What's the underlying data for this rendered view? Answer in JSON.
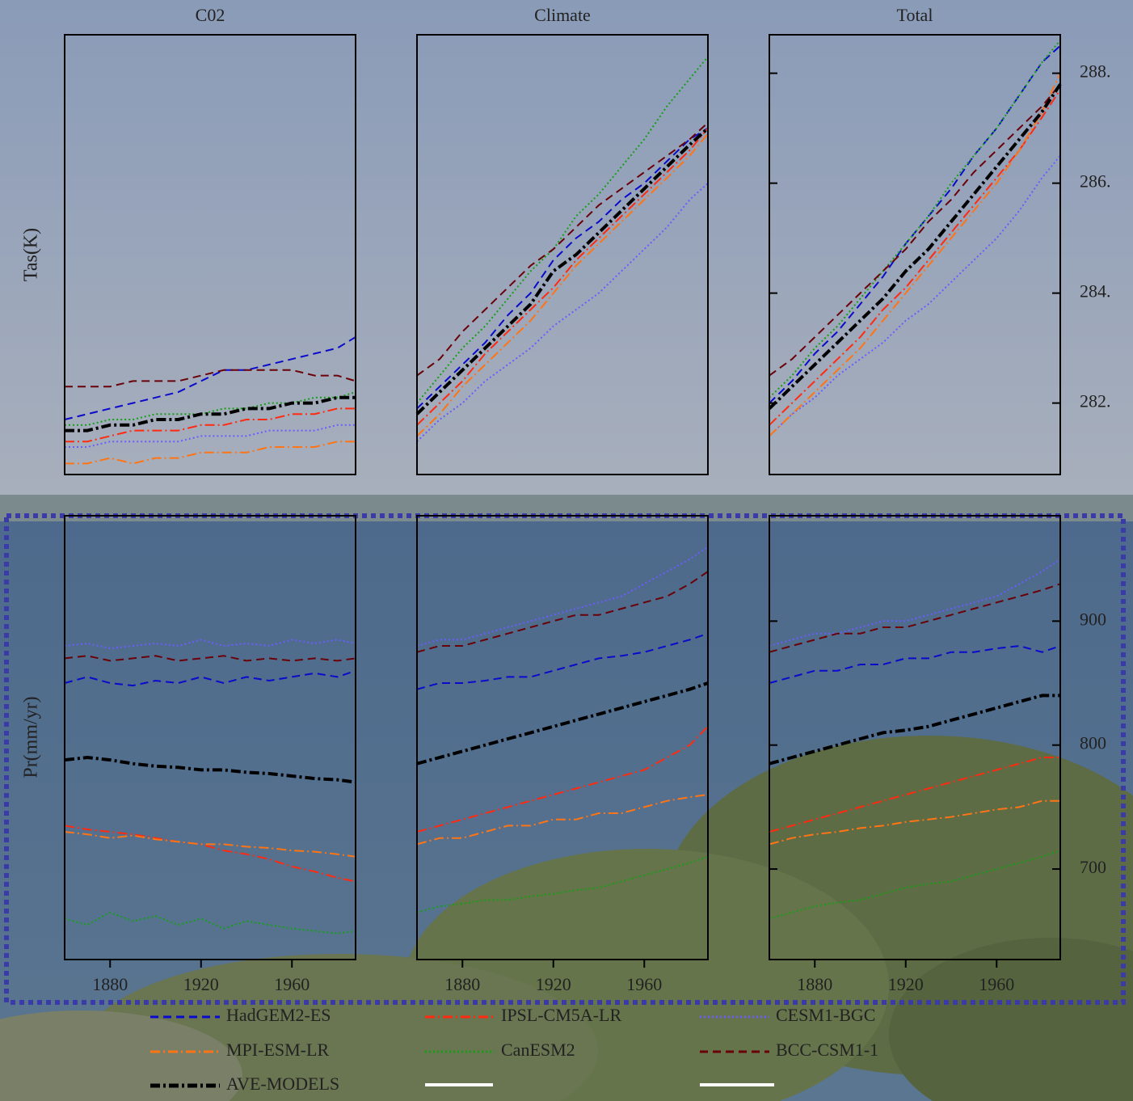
{
  "chart_data": [
    {
      "type": "line",
      "title": "C02",
      "ylabel": "Tas(K)",
      "xlim": [
        1860,
        1988
      ],
      "ylim": [
        280.7,
        288.7
      ],
      "x": [
        1860,
        1870,
        1880,
        1890,
        1900,
        1910,
        1920,
        1930,
        1940,
        1950,
        1960,
        1970,
        1980,
        1988
      ],
      "series": [
        {
          "name": "HadGEM2-ES",
          "color": "#0a0acc",
          "style": "dashed",
          "values": [
            281.7,
            281.8,
            281.9,
            282.0,
            282.1,
            282.2,
            282.4,
            282.6,
            282.6,
            282.7,
            282.8,
            282.9,
            283.0,
            283.2
          ]
        },
        {
          "name": "IPSL-CM5A-LR",
          "color": "#ff2a10",
          "style": "dashdot",
          "values": [
            281.3,
            281.3,
            281.4,
            281.5,
            281.5,
            281.5,
            281.6,
            281.6,
            281.7,
            281.7,
            281.8,
            281.8,
            281.9,
            281.9
          ]
        },
        {
          "name": "CESM1-BGC",
          "color": "#6a5cff",
          "style": "dotted",
          "values": [
            281.2,
            281.2,
            281.3,
            281.3,
            281.3,
            281.3,
            281.4,
            281.4,
            281.4,
            281.5,
            281.5,
            281.5,
            281.6,
            281.6
          ]
        },
        {
          "name": "MPI-ESM-LR",
          "color": "#ff7414",
          "style": "dashdot",
          "values": [
            280.9,
            280.9,
            281.0,
            280.9,
            281.0,
            281.0,
            281.1,
            281.1,
            281.1,
            281.2,
            281.2,
            281.2,
            281.3,
            281.3
          ]
        },
        {
          "name": "CanESM2",
          "color": "#14a014",
          "style": "dotted",
          "values": [
            281.6,
            281.6,
            281.7,
            281.7,
            281.8,
            281.8,
            281.8,
            281.9,
            281.9,
            282.0,
            282.0,
            282.1,
            282.1,
            282.2
          ]
        },
        {
          "name": "BCC-CSM1-1",
          "color": "#6a0008",
          "style": "dashed",
          "values": [
            282.3,
            282.3,
            282.3,
            282.4,
            282.4,
            282.4,
            282.5,
            282.6,
            282.6,
            282.6,
            282.6,
            282.5,
            282.5,
            282.4
          ]
        },
        {
          "name": "AVE-MODELS",
          "color": "#000000",
          "style": "thick",
          "values": [
            281.5,
            281.5,
            281.6,
            281.6,
            281.7,
            281.7,
            281.8,
            281.8,
            281.9,
            281.9,
            282.0,
            282.0,
            282.1,
            282.1
          ]
        }
      ]
    },
    {
      "type": "line",
      "title": "Climate",
      "xlim": [
        1860,
        1988
      ],
      "ylim": [
        280.7,
        288.7
      ],
      "x": [
        1860,
        1870,
        1880,
        1890,
        1900,
        1910,
        1920,
        1930,
        1940,
        1950,
        1960,
        1970,
        1980,
        1988
      ],
      "series": [
        {
          "name": "HadGEM2-ES",
          "color": "#0a0acc",
          "style": "dashed",
          "values": [
            281.9,
            282.3,
            282.7,
            283.1,
            283.6,
            284.0,
            284.6,
            285.0,
            285.3,
            285.7,
            286.0,
            286.4,
            286.8,
            287.0
          ]
        },
        {
          "name": "IPSL-CM5A-LR",
          "color": "#ff2a10",
          "style": "dashdot",
          "values": [
            281.6,
            282.0,
            282.4,
            282.9,
            283.3,
            283.7,
            284.1,
            284.6,
            285.0,
            285.4,
            285.8,
            286.2,
            286.6,
            287.0
          ]
        },
        {
          "name": "CESM1-BGC",
          "color": "#6a5cff",
          "style": "dotted",
          "values": [
            281.3,
            281.7,
            282.0,
            282.4,
            282.7,
            283.0,
            283.4,
            283.7,
            284.0,
            284.4,
            284.8,
            285.2,
            285.7,
            286.0
          ]
        },
        {
          "name": "MPI-ESM-LR",
          "color": "#ff7414",
          "style": "dashdot",
          "values": [
            281.4,
            281.8,
            282.3,
            282.7,
            283.1,
            283.5,
            284.0,
            284.5,
            284.9,
            285.3,
            285.7,
            286.1,
            286.5,
            286.9
          ]
        },
        {
          "name": "CanESM2",
          "color": "#14a014",
          "style": "dotted",
          "values": [
            282.0,
            282.5,
            283.0,
            283.4,
            283.9,
            284.4,
            284.8,
            285.4,
            285.8,
            286.3,
            286.8,
            287.4,
            287.9,
            288.3
          ]
        },
        {
          "name": "BCC-CSM1-1",
          "color": "#6a0008",
          "style": "dashed",
          "values": [
            282.5,
            282.8,
            283.3,
            283.7,
            284.1,
            284.5,
            284.8,
            285.2,
            285.6,
            285.9,
            286.2,
            286.5,
            286.8,
            287.1
          ]
        },
        {
          "name": "AVE-MODELS",
          "color": "#000000",
          "style": "thick",
          "values": [
            281.8,
            282.2,
            282.6,
            283.0,
            283.4,
            283.8,
            284.4,
            284.7,
            285.1,
            285.5,
            285.9,
            286.3,
            286.7,
            287.0
          ]
        }
      ]
    },
    {
      "type": "line",
      "title": "Total",
      "xlim": [
        1860,
        1988
      ],
      "ylim": [
        280.7,
        288.7
      ],
      "yticks": [
        {
          "value": 282,
          "label": "282."
        },
        {
          "value": 284,
          "label": "284."
        },
        {
          "value": 286,
          "label": "286."
        },
        {
          "value": 288,
          "label": "288."
        }
      ],
      "x": [
        1860,
        1870,
        1880,
        1890,
        1900,
        1910,
        1920,
        1930,
        1940,
        1950,
        1960,
        1970,
        1980,
        1988
      ],
      "series": [
        {
          "name": "HadGEM2-ES",
          "color": "#0a0acc",
          "style": "dashed",
          "values": [
            282.0,
            282.4,
            282.9,
            283.3,
            283.8,
            284.3,
            284.9,
            285.4,
            285.9,
            286.5,
            287.0,
            287.6,
            288.2,
            288.5
          ]
        },
        {
          "name": "IPSL-CM5A-LR",
          "color": "#ff2a10",
          "style": "dashdot",
          "values": [
            281.6,
            282.0,
            282.4,
            282.8,
            283.2,
            283.7,
            284.1,
            284.6,
            285.1,
            285.6,
            286.1,
            286.6,
            287.2,
            287.7
          ]
        },
        {
          "name": "CESM1-BGC",
          "color": "#6a5cff",
          "style": "dotted",
          "values": [
            281.4,
            281.8,
            282.1,
            282.5,
            282.8,
            283.1,
            283.5,
            283.8,
            284.2,
            284.6,
            285.0,
            285.5,
            286.1,
            286.5
          ]
        },
        {
          "name": "MPI-ESM-LR",
          "color": "#ff7414",
          "style": "dashdot",
          "values": [
            281.4,
            281.8,
            282.2,
            282.6,
            283.0,
            283.5,
            284.0,
            284.5,
            285.0,
            285.5,
            286.0,
            286.6,
            287.3,
            288.0
          ]
        },
        {
          "name": "CanESM2",
          "color": "#14a014",
          "style": "dotted",
          "values": [
            282.1,
            282.5,
            283.0,
            283.4,
            283.9,
            284.4,
            284.9,
            285.4,
            286.0,
            286.5,
            287.0,
            287.6,
            288.2,
            288.6
          ]
        },
        {
          "name": "BCC-CSM1-1",
          "color": "#6a0008",
          "style": "dashed",
          "values": [
            282.5,
            282.8,
            283.2,
            283.6,
            284.0,
            284.4,
            284.8,
            285.3,
            285.7,
            286.2,
            286.6,
            287.0,
            287.4,
            287.8
          ]
        },
        {
          "name": "AVE-MODELS",
          "color": "#000000",
          "style": "thick",
          "values": [
            281.9,
            282.3,
            282.7,
            283.1,
            283.5,
            283.9,
            284.4,
            284.8,
            285.3,
            285.8,
            286.3,
            286.8,
            287.3,
            287.8
          ]
        }
      ]
    },
    {
      "type": "line",
      "ylabel": "Pr(mm/yr)",
      "xlim": [
        1860,
        1988
      ],
      "ylim": [
        627,
        985
      ],
      "xticks": [
        1880,
        1920,
        1960
      ],
      "x": [
        1860,
        1870,
        1880,
        1890,
        1900,
        1910,
        1920,
        1930,
        1940,
        1950,
        1960,
        1970,
        1980,
        1988
      ],
      "series": [
        {
          "name": "HadGEM2-ES",
          "color": "#0a0acc",
          "style": "dashed",
          "values": [
            850,
            855,
            850,
            848,
            852,
            850,
            855,
            850,
            855,
            852,
            855,
            858,
            855,
            860
          ]
        },
        {
          "name": "IPSL-CM5A-LR",
          "color": "#ff2a10",
          "style": "dashdot",
          "values": [
            735,
            732,
            730,
            728,
            725,
            722,
            720,
            715,
            712,
            708,
            702,
            698,
            693,
            690
          ]
        },
        {
          "name": "CESM1-BGC",
          "color": "#6a5cff",
          "style": "dotted",
          "values": [
            880,
            882,
            878,
            880,
            882,
            880,
            885,
            880,
            882,
            880,
            885,
            882,
            885,
            882
          ]
        },
        {
          "name": "MPI-ESM-LR",
          "color": "#ff7414",
          "style": "dashdot",
          "values": [
            730,
            728,
            725,
            727,
            724,
            722,
            720,
            720,
            718,
            717,
            715,
            714,
            712,
            710
          ]
        },
        {
          "name": "CanESM2",
          "color": "#14a014",
          "style": "dotted",
          "values": [
            660,
            655,
            665,
            658,
            662,
            655,
            660,
            652,
            658,
            655,
            652,
            650,
            648,
            650
          ]
        },
        {
          "name": "BCC-CSM1-1",
          "color": "#6a0008",
          "style": "dashed",
          "values": [
            870,
            872,
            868,
            870,
            872,
            868,
            870,
            872,
            868,
            870,
            868,
            870,
            868,
            870
          ]
        },
        {
          "name": "AVE-MODELS",
          "color": "#000000",
          "style": "thick",
          "values": [
            788,
            790,
            788,
            785,
            783,
            782,
            780,
            780,
            778,
            777,
            775,
            773,
            772,
            770
          ]
        }
      ]
    },
    {
      "type": "line",
      "xlim": [
        1860,
        1988
      ],
      "ylim": [
        627,
        985
      ],
      "xticks": [
        1880,
        1920,
        1960
      ],
      "x": [
        1860,
        1870,
        1880,
        1890,
        1900,
        1910,
        1920,
        1930,
        1940,
        1950,
        1960,
        1970,
        1980,
        1988
      ],
      "series": [
        {
          "name": "HadGEM2-ES",
          "color": "#0a0acc",
          "style": "dashed",
          "values": [
            845,
            850,
            850,
            852,
            855,
            855,
            860,
            865,
            870,
            872,
            875,
            880,
            885,
            890
          ]
        },
        {
          "name": "IPSL-CM5A-LR",
          "color": "#ff2a10",
          "style": "dashdot",
          "values": [
            730,
            735,
            740,
            745,
            750,
            755,
            760,
            765,
            770,
            775,
            780,
            790,
            800,
            815
          ]
        },
        {
          "name": "CESM1-BGC",
          "color": "#6a5cff",
          "style": "dotted",
          "values": [
            880,
            885,
            885,
            890,
            895,
            900,
            905,
            910,
            915,
            920,
            930,
            940,
            950,
            960
          ]
        },
        {
          "name": "MPI-ESM-LR",
          "color": "#ff7414",
          "style": "dashdot",
          "values": [
            720,
            725,
            725,
            730,
            735,
            735,
            740,
            740,
            745,
            745,
            750,
            755,
            758,
            760
          ]
        },
        {
          "name": "CanESM2",
          "color": "#14a014",
          "style": "dotted",
          "values": [
            665,
            670,
            672,
            675,
            675,
            678,
            680,
            683,
            685,
            690,
            695,
            700,
            705,
            710
          ]
        },
        {
          "name": "BCC-CSM1-1",
          "color": "#6a0008",
          "style": "dashed",
          "values": [
            875,
            880,
            880,
            885,
            890,
            895,
            900,
            905,
            905,
            910,
            915,
            920,
            930,
            940
          ]
        },
        {
          "name": "AVE-MODELS",
          "color": "#000000",
          "style": "thick",
          "values": [
            785,
            790,
            795,
            800,
            805,
            810,
            815,
            820,
            825,
            830,
            835,
            840,
            845,
            850
          ]
        }
      ]
    },
    {
      "type": "line",
      "xlim": [
        1860,
        1988
      ],
      "ylim": [
        627,
        985
      ],
      "xticks": [
        1880,
        1920,
        1960
      ],
      "yticks": [
        700,
        800,
        900
      ],
      "x": [
        1860,
        1870,
        1880,
        1890,
        1900,
        1910,
        1920,
        1930,
        1940,
        1950,
        1960,
        1970,
        1980,
        1988
      ],
      "series": [
        {
          "name": "HadGEM2-ES",
          "color": "#0a0acc",
          "style": "dashed",
          "values": [
            850,
            855,
            860,
            860,
            865,
            865,
            870,
            870,
            875,
            875,
            878,
            880,
            875,
            880
          ]
        },
        {
          "name": "IPSL-CM5A-LR",
          "color": "#ff2a10",
          "style": "dashdot",
          "values": [
            730,
            735,
            740,
            745,
            750,
            755,
            760,
            765,
            770,
            775,
            780,
            785,
            790,
            790
          ]
        },
        {
          "name": "CESM1-BGC",
          "color": "#6a5cff",
          "style": "dotted",
          "values": [
            880,
            885,
            890,
            890,
            895,
            900,
            900,
            905,
            910,
            915,
            920,
            930,
            940,
            950
          ]
        },
        {
          "name": "MPI-ESM-LR",
          "color": "#ff7414",
          "style": "dashdot",
          "values": [
            720,
            725,
            728,
            730,
            733,
            735,
            738,
            740,
            742,
            745,
            748,
            750,
            755,
            755
          ]
        },
        {
          "name": "CanESM2",
          "color": "#14a014",
          "style": "dotted",
          "values": [
            660,
            665,
            670,
            673,
            675,
            680,
            685,
            688,
            690,
            695,
            700,
            705,
            710,
            715
          ]
        },
        {
          "name": "BCC-CSM1-1",
          "color": "#6a0008",
          "style": "dashed",
          "values": [
            875,
            880,
            885,
            890,
            890,
            895,
            895,
            900,
            905,
            910,
            915,
            920,
            925,
            930
          ]
        },
        {
          "name": "AVE-MODELS",
          "color": "#000000",
          "style": "thick",
          "values": [
            785,
            790,
            795,
            800,
            805,
            810,
            812,
            815,
            820,
            825,
            830,
            835,
            840,
            840
          ]
        }
      ]
    }
  ]
}
